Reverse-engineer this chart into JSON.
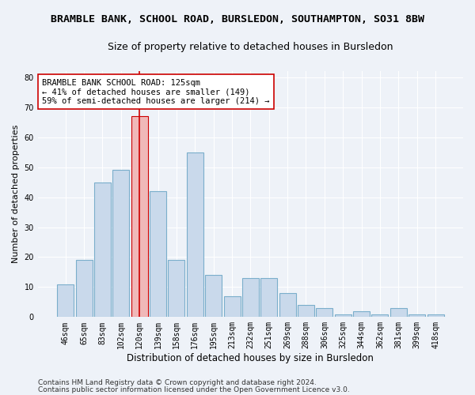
{
  "title1": "BRAMBLE BANK, SCHOOL ROAD, BURSLEDON, SOUTHAMPTON, SO31 8BW",
  "title2": "Size of property relative to detached houses in Bursledon",
  "xlabel": "Distribution of detached houses by size in Bursledon",
  "ylabel": "Number of detached properties",
  "footer1": "Contains HM Land Registry data © Crown copyright and database right 2024.",
  "footer2": "Contains public sector information licensed under the Open Government Licence v3.0.",
  "categories": [
    "46sqm",
    "65sqm",
    "83sqm",
    "102sqm",
    "120sqm",
    "139sqm",
    "158sqm",
    "176sqm",
    "195sqm",
    "213sqm",
    "232sqm",
    "251sqm",
    "269sqm",
    "288sqm",
    "306sqm",
    "325sqm",
    "344sqm",
    "362sqm",
    "381sqm",
    "399sqm",
    "418sqm"
  ],
  "values": [
    11,
    19,
    45,
    49,
    67,
    42,
    19,
    55,
    14,
    7,
    13,
    13,
    8,
    4,
    3,
    1,
    2,
    1,
    3,
    1,
    1
  ],
  "bar_color": "#c9d9eb",
  "bar_edge_color": "#7aaecb",
  "highlight_index": 4,
  "highlight_bar_color": "#f0b8b8",
  "highlight_bar_edge_color": "#cc0000",
  "vline_color": "#cc0000",
  "annotation_box_text": "BRAMBLE BANK SCHOOL ROAD: 125sqm\n← 41% of detached houses are smaller (149)\n59% of semi-detached houses are larger (214) →",
  "ylim": [
    0,
    82
  ],
  "yticks": [
    0,
    10,
    20,
    30,
    40,
    50,
    60,
    70,
    80
  ],
  "background_color": "#eef2f8",
  "grid_color": "#ffffff",
  "title1_fontsize": 9.5,
  "title2_fontsize": 9,
  "xlabel_fontsize": 8.5,
  "ylabel_fontsize": 8,
  "tick_fontsize": 7,
  "annotation_fontsize": 7.5,
  "footer_fontsize": 6.5
}
